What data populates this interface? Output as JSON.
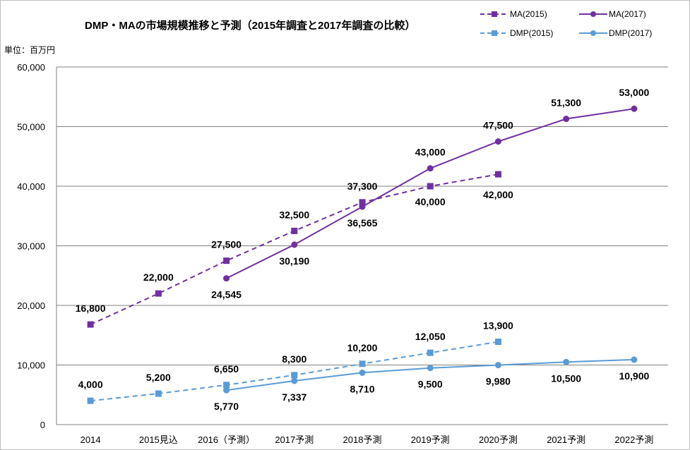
{
  "chart_data": {
    "type": "line",
    "title": "DMP・MAの市場規模推移と予測（2015年調査と2017年調査の比較）",
    "unit_label": "単位：百万円",
    "categories": [
      "2014",
      "2015見込",
      "2016（予測）",
      "2017予測",
      "2018予測",
      "2019予測",
      "2020予測",
      "2021予測",
      "2022予測"
    ],
    "ylim": [
      0,
      60000
    ],
    "yticks": [
      0,
      10000,
      20000,
      30000,
      40000,
      50000,
      60000
    ],
    "ytick_labels": [
      "0",
      "10,000",
      "20,000",
      "30,000",
      "40,000",
      "50,000",
      "60,000"
    ],
    "grid": true,
    "legend_position": "top-right",
    "series": [
      {
        "name": "MA(2015)",
        "color": "#7030a0",
        "dash": true,
        "marker": "square",
        "values": [
          16800,
          22000,
          27500,
          32500,
          37300,
          40000,
          42000,
          null,
          null
        ],
        "labels": [
          "16,800",
          "22,000",
          "27,500",
          "32,500",
          "37,300",
          "40,000",
          "42,000",
          null,
          null
        ]
      },
      {
        "name": "MA(2017)",
        "color": "#7030a0",
        "dash": false,
        "marker": "circle",
        "values": [
          null,
          null,
          24545,
          30190,
          36565,
          43000,
          47500,
          51300,
          53000
        ],
        "labels": [
          null,
          null,
          "24,545",
          "30,190",
          "36,565",
          "43,000",
          "47,500",
          "51,300",
          "53,000"
        ]
      },
      {
        "name": "DMP(2015)",
        "color": "#5b9bd5",
        "dash": true,
        "marker": "square",
        "values": [
          4000,
          5200,
          6650,
          8300,
          10200,
          12050,
          13900,
          null,
          null
        ],
        "labels": [
          "4,000",
          "5,200",
          "6,650",
          "8,300",
          "10,200",
          "12,050",
          "13,900",
          null,
          null
        ]
      },
      {
        "name": "DMP(2017)",
        "color": "#5b9bd5",
        "dash": false,
        "marker": "circle",
        "values": [
          null,
          null,
          5770,
          7337,
          8710,
          9500,
          9980,
          10500,
          10900
        ],
        "labels": [
          null,
          null,
          "5,770",
          "7,337",
          "8,710",
          "9,500",
          "9,980",
          "10,500",
          "10,900"
        ]
      }
    ]
  }
}
